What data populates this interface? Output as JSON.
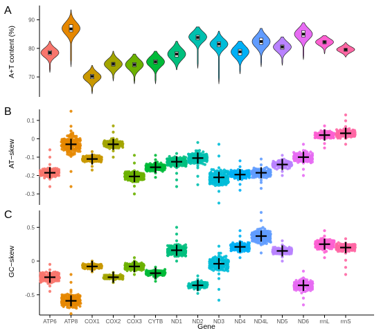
{
  "figure": {
    "xlabel": "Gene",
    "genes": [
      "ATP6",
      "ATP8",
      "COX1",
      "COX2",
      "COX3",
      "CYTB",
      "ND1",
      "ND2",
      "ND3",
      "ND4",
      "ND4L",
      "ND5",
      "ND6",
      "rrnL",
      "rrnS"
    ],
    "colors": [
      "#F8766D",
      "#E58700",
      "#C99800",
      "#A3A500",
      "#6BB100",
      "#00BA38",
      "#00BF7D",
      "#00C0AF",
      "#00BCD8",
      "#00B0F6",
      "#619CFF",
      "#B983FF",
      "#E76BF3",
      "#FD61D1",
      "#FF67A4"
    ]
  },
  "chart_data": [
    {
      "type": "violin-box",
      "panel_letter": "A",
      "ylabel": "A+T content (%)",
      "ylim": [
        63,
        95
      ],
      "yticks": [
        70,
        80,
        90
      ],
      "series": [
        {
          "name": "ATP6",
          "median": 78.5,
          "q1": 77.8,
          "q3": 79.2,
          "min": 71.5,
          "max": 82.5,
          "mode": 78.5,
          "spread": 1.6
        },
        {
          "name": "ATP8",
          "median": 86.8,
          "q1": 85.8,
          "q3": 88.3,
          "min": 73.5,
          "max": 93.5,
          "mode": 87.0,
          "spread": 2.2
        },
        {
          "name": "COX1",
          "median": 70.2,
          "q1": 69.4,
          "q3": 70.9,
          "min": 64.0,
          "max": 74.0,
          "mode": 70.0,
          "spread": 1.6
        },
        {
          "name": "COX2",
          "median": 74.5,
          "q1": 73.8,
          "q3": 75.1,
          "min": 68.5,
          "max": 79.0,
          "mode": 74.5,
          "spread": 1.7
        },
        {
          "name": "COX3",
          "median": 74.3,
          "q1": 73.6,
          "q3": 75.0,
          "min": 67.5,
          "max": 78.0,
          "mode": 74.3,
          "spread": 1.8
        },
        {
          "name": "CYTB",
          "median": 75.3,
          "q1": 74.6,
          "q3": 76.0,
          "min": 67.5,
          "max": 79.0,
          "mode": 75.3,
          "spread": 1.8
        },
        {
          "name": "ND1",
          "median": 78.0,
          "q1": 77.0,
          "q3": 78.8,
          "min": 72.5,
          "max": 82.5,
          "mode": 78.0,
          "spread": 2.0
        },
        {
          "name": "ND2",
          "median": 83.8,
          "q1": 83.0,
          "q3": 84.6,
          "min": 73.0,
          "max": 87.5,
          "mode": 84.0,
          "spread": 1.8
        },
        {
          "name": "ND3",
          "median": 81.5,
          "q1": 80.6,
          "q3": 82.3,
          "min": 67.5,
          "max": 86.0,
          "mode": 81.5,
          "spread": 1.8
        },
        {
          "name": "ND4",
          "median": 78.8,
          "q1": 77.6,
          "q3": 79.7,
          "min": 71.0,
          "max": 82.5,
          "mode": 78.8,
          "spread": 2.0
        },
        {
          "name": "ND4L",
          "median": 82.4,
          "q1": 81.4,
          "q3": 83.6,
          "min": 73.5,
          "max": 87.0,
          "mode": 82.4,
          "spread": 2.1
        },
        {
          "name": "ND5",
          "median": 80.5,
          "q1": 79.7,
          "q3": 81.2,
          "min": 74.0,
          "max": 84.0,
          "mode": 80.5,
          "spread": 1.7
        },
        {
          "name": "ND6",
          "median": 85.0,
          "q1": 84.0,
          "q3": 86.2,
          "min": 76.0,
          "max": 89.0,
          "mode": 85.0,
          "spread": 1.9
        },
        {
          "name": "rrnL",
          "median": 82.2,
          "q1": 81.6,
          "q3": 82.7,
          "min": 78.0,
          "max": 84.5,
          "mode": 82.2,
          "spread": 1.2
        },
        {
          "name": "rrnS",
          "median": 79.6,
          "q1": 79.0,
          "q3": 80.0,
          "min": 77.0,
          "max": 82.0,
          "mode": 79.6,
          "spread": 1.0
        }
      ]
    },
    {
      "type": "beeswarm",
      "panel_letter": "B",
      "ylabel": "AT−skew",
      "ylim": [
        -0.36,
        0.16
      ],
      "yticks": [
        -0.3,
        -0.2,
        -0.1,
        0.0,
        0.1
      ],
      "series": [
        {
          "name": "ATP6",
          "mean": -0.185,
          "min": -0.26,
          "max": -0.06,
          "spread": 0.022
        },
        {
          "name": "ATP8",
          "mean": -0.03,
          "min": -0.26,
          "max": 0.15,
          "spread": 0.05
        },
        {
          "name": "COX1",
          "mean": -0.11,
          "min": -0.17,
          "max": -0.07,
          "spread": 0.016
        },
        {
          "name": "COX2",
          "mean": -0.03,
          "min": -0.1,
          "max": 0.07,
          "spread": 0.022
        },
        {
          "name": "COX3",
          "mean": -0.205,
          "min": -0.3,
          "max": -0.09,
          "spread": 0.025
        },
        {
          "name": "CYTB",
          "mean": -0.155,
          "min": -0.21,
          "max": -0.09,
          "spread": 0.02
        },
        {
          "name": "ND1",
          "mean": -0.125,
          "min": -0.26,
          "max": -0.08,
          "spread": 0.025
        },
        {
          "name": "ND2",
          "mean": -0.105,
          "min": -0.25,
          "max": -0.02,
          "spread": 0.03
        },
        {
          "name": "ND3",
          "mean": -0.21,
          "min": -0.35,
          "max": -0.03,
          "spread": 0.04
        },
        {
          "name": "ND4",
          "mean": -0.195,
          "min": -0.28,
          "max": -0.12,
          "spread": 0.022
        },
        {
          "name": "ND4L",
          "mean": -0.185,
          "min": -0.27,
          "max": -0.11,
          "spread": 0.025
        },
        {
          "name": "ND5",
          "mean": -0.14,
          "min": -0.2,
          "max": -0.09,
          "spread": 0.02
        },
        {
          "name": "ND6",
          "mean": -0.1,
          "min": -0.2,
          "max": -0.03,
          "spread": 0.03
        },
        {
          "name": "rrnL",
          "mean": 0.02,
          "min": -0.05,
          "max": 0.07,
          "spread": 0.018
        },
        {
          "name": "rrnS",
          "mean": 0.03,
          "min": -0.03,
          "max": 0.13,
          "spread": 0.022
        }
      ]
    },
    {
      "type": "beeswarm",
      "panel_letter": "C",
      "ylabel": "GC−skew",
      "ylim": [
        -0.8,
        0.75
      ],
      "yticks": [
        -0.5,
        0.0,
        0.5
      ],
      "series": [
        {
          "name": "ATP6",
          "mean": -0.24,
          "min": -0.45,
          "max": -0.05,
          "spread": 0.07
        },
        {
          "name": "ATP8",
          "mean": -0.59,
          "min": -0.78,
          "max": -0.2,
          "spread": 0.09
        },
        {
          "name": "COX1",
          "mean": -0.08,
          "min": -0.16,
          "max": 0.0,
          "spread": 0.035
        },
        {
          "name": "COX2",
          "mean": -0.24,
          "min": -0.32,
          "max": -0.17,
          "spread": 0.03
        },
        {
          "name": "COX3",
          "mean": -0.08,
          "min": -0.2,
          "max": 0.05,
          "spread": 0.05
        },
        {
          "name": "CYTB",
          "mean": -0.18,
          "min": -0.3,
          "max": -0.09,
          "spread": 0.04
        },
        {
          "name": "ND1",
          "mean": 0.16,
          "min": 0.0,
          "max": 0.5,
          "spread": 0.08
        },
        {
          "name": "ND2",
          "mean": -0.36,
          "min": -0.48,
          "max": -0.22,
          "spread": 0.05
        },
        {
          "name": "ND3",
          "mean": -0.04,
          "min": -0.58,
          "max": 0.22,
          "spread": 0.11
        },
        {
          "name": "ND4",
          "mean": 0.21,
          "min": 0.05,
          "max": 0.45,
          "spread": 0.07
        },
        {
          "name": "ND4L",
          "mean": 0.37,
          "min": 0.12,
          "max": 0.72,
          "spread": 0.11
        },
        {
          "name": "ND5",
          "mean": 0.15,
          "min": 0.0,
          "max": 0.3,
          "spread": 0.05
        },
        {
          "name": "ND6",
          "mean": -0.36,
          "min": -0.65,
          "max": -0.15,
          "spread": 0.08
        },
        {
          "name": "rrnL",
          "mean": 0.25,
          "min": 0.05,
          "max": 0.45,
          "spread": 0.07
        },
        {
          "name": "rrnS",
          "mean": 0.2,
          "min": -0.2,
          "max": 0.33,
          "spread": 0.05
        }
      ]
    }
  ]
}
